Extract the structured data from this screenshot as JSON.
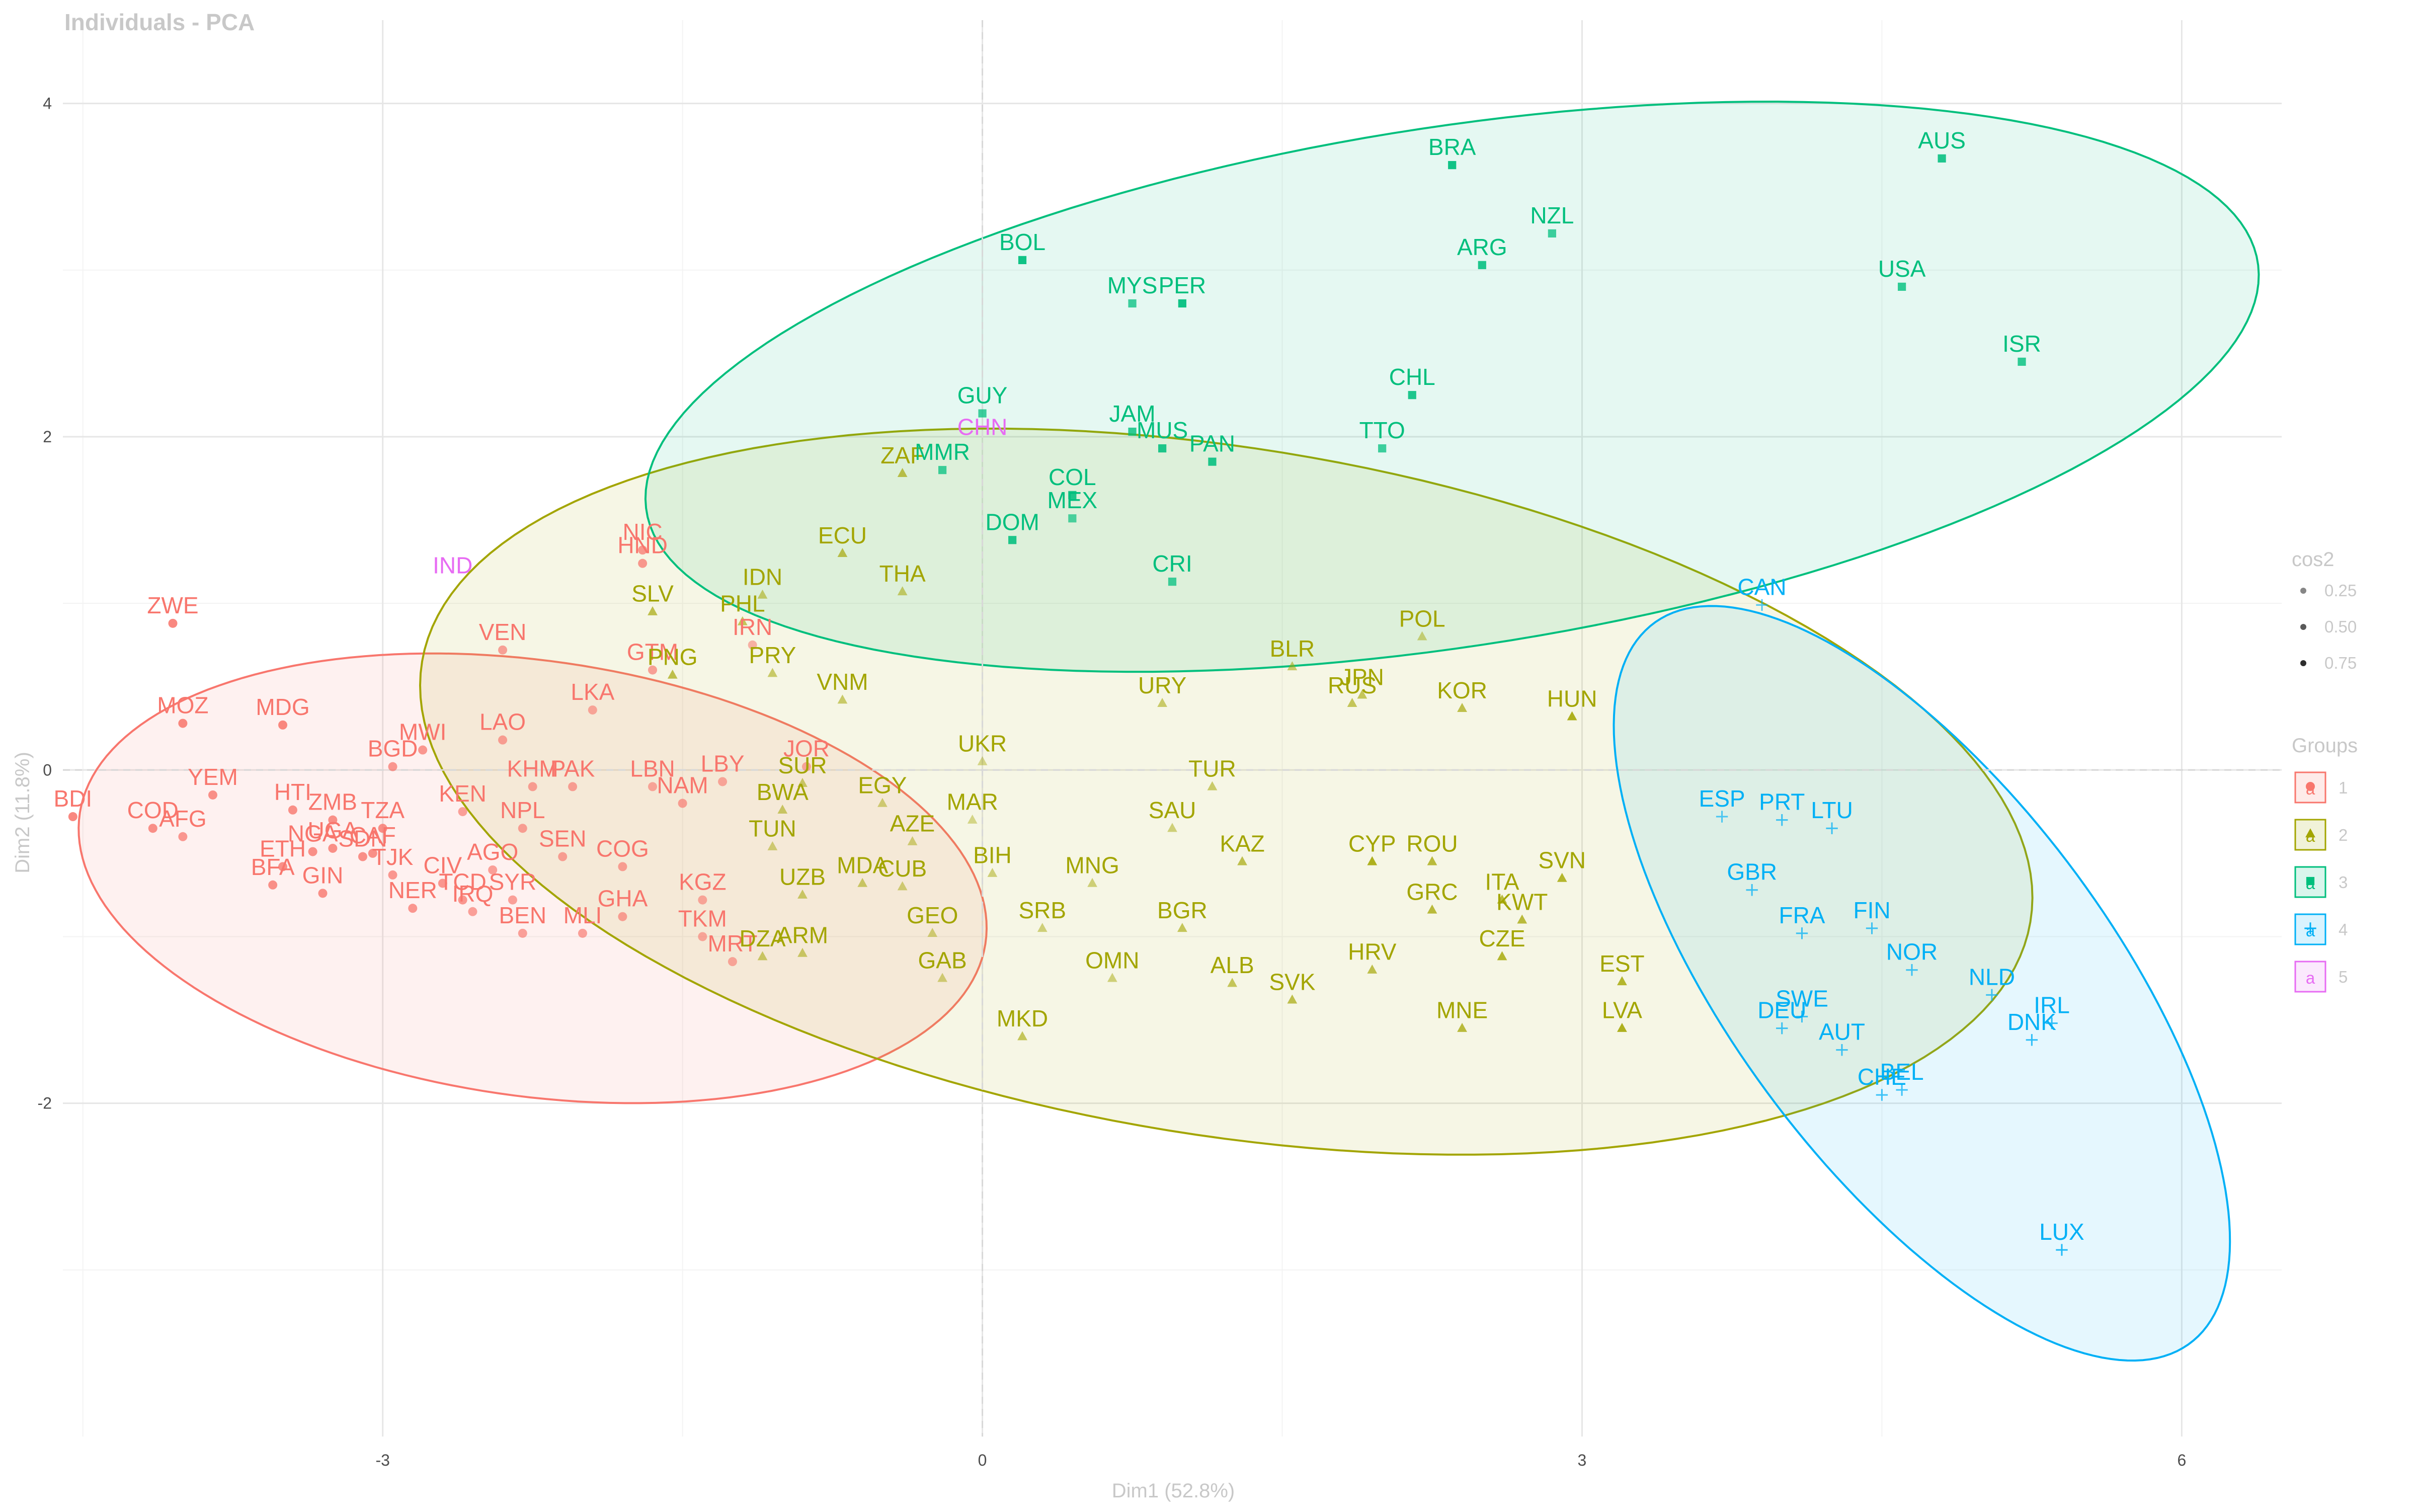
{
  "chart_data": {
    "type": "scatter",
    "title": "Individuals - PCA",
    "xlabel": "Dim1 (52.8%)",
    "ylabel": "Dim2 (11.8%)",
    "xlim": [
      -4.6,
      6.5
    ],
    "ylim": [
      -4.0,
      4.5
    ],
    "x_ticks": [
      -3,
      0,
      3,
      6
    ],
    "y_ticks": [
      -2,
      0,
      2,
      4
    ],
    "grid": true,
    "zero_lines": true,
    "legend_position": "right",
    "legend_cos2_title": "cos2",
    "legend_cos2": [
      {
        "label": "0.25",
        "value": 0.25
      },
      {
        "label": "0.50",
        "value": 0.5
      },
      {
        "label": "0.75",
        "value": 0.75
      }
    ],
    "legend_groups_title": "Groups",
    "legend_key_glyph": "a",
    "groups": [
      {
        "id": "1",
        "color": "#F8766D",
        "marker": "circle"
      },
      {
        "id": "2",
        "color": "#A3A500",
        "marker": "triangle"
      },
      {
        "id": "3",
        "color": "#00BF7D",
        "marker": "square"
      },
      {
        "id": "4",
        "color": "#00B0F6",
        "marker": "plus"
      },
      {
        "id": "5",
        "color": "#E76BF3",
        "marker": "none"
      }
    ],
    "ellipses": [
      {
        "group": "1",
        "cx": -2.25,
        "cy": -0.65,
        "rx": 2.3,
        "ry": 1.3,
        "angle": -11
      },
      {
        "group": "2",
        "cx": 1.22,
        "cy": -0.13,
        "rx": 4.1,
        "ry": 2.05,
        "angle": -12
      },
      {
        "group": "3",
        "cx": 2.35,
        "cy": 2.3,
        "rx": 4.1,
        "ry": 1.55,
        "angle": 11
      },
      {
        "group": "4",
        "cx": 4.7,
        "cy": -1.28,
        "rx": 2.55,
        "ry": 1.0,
        "angle": -60
      }
    ],
    "points": [
      {
        "label": "ZWE",
        "group": "1",
        "x": -4.05,
        "y": 0.88,
        "cos2": 0.8
      },
      {
        "label": "MOZ",
        "group": "1",
        "x": -4.0,
        "y": 0.28,
        "cos2": 0.8
      },
      {
        "label": "MDG",
        "group": "1",
        "x": -3.5,
        "y": 0.27,
        "cos2": 0.8
      },
      {
        "label": "YEM",
        "group": "1",
        "x": -3.85,
        "y": -0.15,
        "cos2": 0.7
      },
      {
        "label": "HTI",
        "group": "1",
        "x": -3.45,
        "y": -0.24,
        "cos2": 0.7
      },
      {
        "label": "COD",
        "group": "1",
        "x": -4.15,
        "y": -0.35,
        "cos2": 0.7
      },
      {
        "label": "AFG",
        "group": "1",
        "x": -4.0,
        "y": -0.4,
        "cos2": 0.6
      },
      {
        "label": "BDI",
        "group": "1",
        "x": -4.55,
        "y": -0.28,
        "cos2": 0.8
      },
      {
        "label": "NGA",
        "group": "1",
        "x": -3.35,
        "y": -0.49,
        "cos2": 0.7
      },
      {
        "label": "ETH",
        "group": "1",
        "x": -3.5,
        "y": -0.58,
        "cos2": 0.7
      },
      {
        "label": "BFA",
        "group": "1",
        "x": -3.55,
        "y": -0.69,
        "cos2": 0.7
      },
      {
        "label": "GIN",
        "group": "1",
        "x": -3.3,
        "y": -0.74,
        "cos2": 0.7
      },
      {
        "label": "UGA",
        "group": "1",
        "x": -3.25,
        "y": -0.47,
        "cos2": 0.7
      },
      {
        "label": "SDN",
        "group": "1",
        "x": -3.1,
        "y": -0.52,
        "cos2": 0.7
      },
      {
        "label": "ZMB",
        "group": "1",
        "x": -3.25,
        "y": -0.3,
        "cos2": 0.7
      },
      {
        "label": "TZA",
        "group": "1",
        "x": -3.0,
        "y": -0.35,
        "cos2": 0.7
      },
      {
        "label": "BGD",
        "group": "1",
        "x": -2.95,
        "y": 0.02,
        "cos2": 0.6
      },
      {
        "label": "CAF",
        "group": "1",
        "x": -3.05,
        "y": -0.5,
        "cos2": 0.7
      },
      {
        "label": "TJK",
        "group": "1",
        "x": -2.95,
        "y": -0.63,
        "cos2": 0.6
      },
      {
        "label": "NER",
        "group": "1",
        "x": -2.85,
        "y": -0.83,
        "cos2": 0.6
      },
      {
        "label": "CIV",
        "group": "1",
        "x": -2.7,
        "y": -0.68,
        "cos2": 0.6
      },
      {
        "label": "TCD",
        "group": "1",
        "x": -2.6,
        "y": -0.78,
        "cos2": 0.6
      },
      {
        "label": "MWI",
        "group": "1",
        "x": -2.8,
        "y": 0.12,
        "cos2": 0.6
      },
      {
        "label": "LAO",
        "group": "1",
        "x": -2.4,
        "y": 0.18,
        "cos2": 0.5
      },
      {
        "label": "KHM",
        "group": "1",
        "x": -2.25,
        "y": -0.1,
        "cos2": 0.5
      },
      {
        "label": "KEN",
        "group": "1",
        "x": -2.6,
        "y": -0.25,
        "cos2": 0.5
      },
      {
        "label": "NPL",
        "group": "1",
        "x": -2.3,
        "y": -0.35,
        "cos2": 0.5
      },
      {
        "label": "AGO",
        "group": "1",
        "x": -2.45,
        "y": -0.6,
        "cos2": 0.5
      },
      {
        "label": "SEN",
        "group": "1",
        "x": -2.1,
        "y": -0.52,
        "cos2": 0.5
      },
      {
        "label": "SYR",
        "group": "1",
        "x": -2.35,
        "y": -0.78,
        "cos2": 0.5
      },
      {
        "label": "IRQ",
        "group": "1",
        "x": -2.55,
        "y": -0.85,
        "cos2": 0.5
      },
      {
        "label": "BEN",
        "group": "1",
        "x": -2.3,
        "y": -0.98,
        "cos2": 0.5
      },
      {
        "label": "MLI",
        "group": "1",
        "x": -2.0,
        "y": -0.98,
        "cos2": 0.5
      },
      {
        "label": "GHA",
        "group": "1",
        "x": -1.8,
        "y": -0.88,
        "cos2": 0.5
      },
      {
        "label": "COG",
        "group": "1",
        "x": -1.8,
        "y": -0.58,
        "cos2": 0.5
      },
      {
        "label": "PAK",
        "group": "1",
        "x": -2.05,
        "y": -0.1,
        "cos2": 0.5
      },
      {
        "label": "NAM",
        "group": "1",
        "x": -1.5,
        "y": -0.2,
        "cos2": 0.5
      },
      {
        "label": "LBN",
        "group": "1",
        "x": -1.65,
        "y": -0.1,
        "cos2": 0.4
      },
      {
        "label": "LBY",
        "group": "1",
        "x": -1.3,
        "y": -0.07,
        "cos2": 0.4
      },
      {
        "label": "JOR",
        "group": "1",
        "x": -0.88,
        "y": 0.02,
        "cos2": 0.4
      },
      {
        "label": "KGZ",
        "group": "1",
        "x": -1.4,
        "y": -0.78,
        "cos2": 0.4
      },
      {
        "label": "TKM",
        "group": "1",
        "x": -1.4,
        "y": -1.0,
        "cos2": 0.4
      },
      {
        "label": "MRT",
        "group": "1",
        "x": -1.25,
        "y": -1.15,
        "cos2": 0.4
      },
      {
        "label": "LKA",
        "group": "1",
        "x": -1.95,
        "y": 0.36,
        "cos2": 0.4
      },
      {
        "label": "GTM",
        "group": "1",
        "x": -1.65,
        "y": 0.6,
        "cos2": 0.5
      },
      {
        "label": "IRN",
        "group": "1",
        "x": -1.15,
        "y": 0.75,
        "cos2": 0.3
      },
      {
        "label": "VEN",
        "group": "1",
        "x": -2.4,
        "y": 0.72,
        "cos2": 0.5
      },
      {
        "label": "NIC",
        "group": "1",
        "x": -1.7,
        "y": 1.32,
        "cos2": 0.6
      },
      {
        "label": "HND",
        "group": "1",
        "x": -1.7,
        "y": 1.24,
        "cos2": 0.6
      },
      {
        "label": "ZAF",
        "group": "2",
        "x": -0.4,
        "y": 1.78,
        "cos2": 0.5
      },
      {
        "label": "ECU",
        "group": "2",
        "x": -0.7,
        "y": 1.3,
        "cos2": 0.5
      },
      {
        "label": "IDN",
        "group": "2",
        "x": -1.1,
        "y": 1.05,
        "cos2": 0.3
      },
      {
        "label": "THA",
        "group": "2",
        "x": -0.4,
        "y": 1.07,
        "cos2": 0.3
      },
      {
        "label": "SLV",
        "group": "2",
        "x": -1.65,
        "y": 0.95,
        "cos2": 0.5
      },
      {
        "label": "PHL",
        "group": "2",
        "x": -1.2,
        "y": 0.89,
        "cos2": 0.4
      },
      {
        "label": "PNG",
        "group": "2",
        "x": -1.55,
        "y": 0.57,
        "cos2": 0.5
      },
      {
        "label": "PRY",
        "group": "2",
        "x": -1.05,
        "y": 0.58,
        "cos2": 0.3
      },
      {
        "label": "VNM",
        "group": "2",
        "x": -0.7,
        "y": 0.42,
        "cos2": 0.3
      },
      {
        "label": "SUR",
        "group": "2",
        "x": -0.9,
        "y": -0.08,
        "cos2": 0.3
      },
      {
        "label": "BWA",
        "group": "2",
        "x": -1.0,
        "y": -0.24,
        "cos2": 0.3
      },
      {
        "label": "EGY",
        "group": "2",
        "x": -0.5,
        "y": -0.2,
        "cos2": 0.2
      },
      {
        "label": "TUN",
        "group": "2",
        "x": -1.05,
        "y": -0.46,
        "cos2": 0.2
      },
      {
        "label": "AZE",
        "group": "2",
        "x": -0.35,
        "y": -0.43,
        "cos2": 0.2
      },
      {
        "label": "UZB",
        "group": "2",
        "x": -0.9,
        "y": -0.75,
        "cos2": 0.3
      },
      {
        "label": "CUB",
        "group": "2",
        "x": -0.4,
        "y": -0.7,
        "cos2": 0.2
      },
      {
        "label": "MDA",
        "group": "2",
        "x": -0.6,
        "y": -0.68,
        "cos2": 0.3
      },
      {
        "label": "GEO",
        "group": "2",
        "x": -0.25,
        "y": -0.98,
        "cos2": 0.2
      },
      {
        "label": "ARM",
        "group": "2",
        "x": -0.9,
        "y": -1.1,
        "cos2": 0.3
      },
      {
        "label": "DZA",
        "group": "2",
        "x": -1.1,
        "y": -1.12,
        "cos2": 0.3
      },
      {
        "label": "GAB",
        "group": "2",
        "x": -0.2,
        "y": -1.25,
        "cos2": 0.2
      },
      {
        "label": "MKD",
        "group": "2",
        "x": 0.2,
        "y": -1.6,
        "cos2": 0.4
      },
      {
        "label": "OMN",
        "group": "2",
        "x": 0.65,
        "y": -1.25,
        "cos2": 0.2
      },
      {
        "label": "SRB",
        "group": "2",
        "x": 0.3,
        "y": -0.95,
        "cos2": 0.2
      },
      {
        "label": "BIH",
        "group": "2",
        "x": 0.05,
        "y": -0.62,
        "cos2": 0.2
      },
      {
        "label": "MAR",
        "group": "2",
        "x": -0.05,
        "y": -0.3,
        "cos2": 0.1
      },
      {
        "label": "UKR",
        "group": "2",
        "x": 0.0,
        "y": 0.05,
        "cos2": 0.1
      },
      {
        "label": "SAU",
        "group": "2",
        "x": 0.95,
        "y": -0.35,
        "cos2": 0.2
      },
      {
        "label": "MNG",
        "group": "2",
        "x": 0.55,
        "y": -0.68,
        "cos2": 0.2
      },
      {
        "label": "BGR",
        "group": "2",
        "x": 1.0,
        "y": -0.95,
        "cos2": 0.4
      },
      {
        "label": "ALB",
        "group": "2",
        "x": 1.25,
        "y": -1.28,
        "cos2": 0.4
      },
      {
        "label": "SVK",
        "group": "2",
        "x": 1.55,
        "y": -1.38,
        "cos2": 0.5
      },
      {
        "label": "HRV",
        "group": "2",
        "x": 1.95,
        "y": -1.2,
        "cos2": 0.5
      },
      {
        "label": "MNE",
        "group": "2",
        "x": 2.4,
        "y": -1.55,
        "cos2": 0.6
      },
      {
        "label": "CZE",
        "group": "2",
        "x": 2.6,
        "y": -1.12,
        "cos2": 0.7
      },
      {
        "label": "KWT",
        "group": "2",
        "x": 2.7,
        "y": -0.9,
        "cos2": 0.6
      },
      {
        "label": "EST",
        "group": "2",
        "x": 3.2,
        "y": -1.27,
        "cos2": 0.7
      },
      {
        "label": "LVA",
        "group": "2",
        "x": 3.2,
        "y": -1.55,
        "cos2": 0.8
      },
      {
        "label": "GRC",
        "group": "2",
        "x": 2.25,
        "y": -0.84,
        "cos2": 0.6
      },
      {
        "label": "ITA",
        "group": "2",
        "x": 2.6,
        "y": -0.78,
        "cos2": 0.6
      },
      {
        "label": "SVN",
        "group": "2",
        "x": 2.9,
        "y": -0.65,
        "cos2": 0.7
      },
      {
        "label": "ROU",
        "group": "2",
        "x": 2.25,
        "y": -0.55,
        "cos2": 0.6
      },
      {
        "label": "CYP",
        "group": "2",
        "x": 1.95,
        "y": -0.55,
        "cos2": 0.8
      },
      {
        "label": "KAZ",
        "group": "2",
        "x": 1.3,
        "y": -0.55,
        "cos2": 0.5
      },
      {
        "label": "TUR",
        "group": "2",
        "x": 1.15,
        "y": -0.1,
        "cos2": 0.3
      },
      {
        "label": "URY",
        "group": "2",
        "x": 0.9,
        "y": 0.4,
        "cos2": 0.3
      },
      {
        "label": "BLR",
        "group": "2",
        "x": 1.55,
        "y": 0.62,
        "cos2": 0.3
      },
      {
        "label": "RUS",
        "group": "2",
        "x": 1.85,
        "y": 0.4,
        "cos2": 0.4
      },
      {
        "label": "JPN",
        "group": "2",
        "x": 1.9,
        "y": 0.45,
        "cos2": 0.4
      },
      {
        "label": "KOR",
        "group": "2",
        "x": 2.4,
        "y": 0.37,
        "cos2": 0.5
      },
      {
        "label": "HUN",
        "group": "2",
        "x": 2.95,
        "y": 0.32,
        "cos2": 0.8
      },
      {
        "label": "POL",
        "group": "2",
        "x": 2.2,
        "y": 0.8,
        "cos2": 0.2
      },
      {
        "label": "BRA",
        "group": "3",
        "x": 2.35,
        "y": 3.63,
        "cos2": 0.9
      },
      {
        "label": "AUS",
        "group": "3",
        "x": 4.8,
        "y": 3.67,
        "cos2": 0.8
      },
      {
        "label": "NZL",
        "group": "3",
        "x": 2.85,
        "y": 3.22,
        "cos2": 0.6
      },
      {
        "label": "ARG",
        "group": "3",
        "x": 2.5,
        "y": 3.03,
        "cos2": 0.8
      },
      {
        "label": "USA",
        "group": "3",
        "x": 4.6,
        "y": 2.9,
        "cos2": 0.7
      },
      {
        "label": "ISR",
        "group": "3",
        "x": 5.2,
        "y": 2.45,
        "cos2": 0.7
      },
      {
        "label": "BOL",
        "group": "3",
        "x": 0.2,
        "y": 3.06,
        "cos2": 0.9
      },
      {
        "label": "PER",
        "group": "3",
        "x": 1.0,
        "y": 2.8,
        "cos2": 0.9
      },
      {
        "label": "MYS",
        "group": "3",
        "x": 0.75,
        "y": 2.8,
        "cos2": 0.6
      },
      {
        "label": "GUY",
        "group": "3",
        "x": 0.0,
        "y": 2.14,
        "cos2": 0.6
      },
      {
        "label": "JAM",
        "group": "3",
        "x": 0.75,
        "y": 2.03,
        "cos2": 0.7
      },
      {
        "label": "MUS",
        "group": "3",
        "x": 0.9,
        "y": 1.93,
        "cos2": 0.8
      },
      {
        "label": "CHL",
        "group": "3",
        "x": 2.15,
        "y": 2.25,
        "cos2": 0.8
      },
      {
        "label": "TTO",
        "group": "3",
        "x": 2.0,
        "y": 1.93,
        "cos2": 0.6
      },
      {
        "label": "COL",
        "group": "3",
        "x": 0.45,
        "y": 1.65,
        "cos2": 0.8
      },
      {
        "label": "PAN",
        "group": "3",
        "x": 1.15,
        "y": 1.85,
        "cos2": 0.8
      },
      {
        "label": "MMR",
        "group": "3",
        "x": -0.2,
        "y": 1.8,
        "cos2": 0.6
      },
      {
        "label": "MEX",
        "group": "3",
        "x": 0.45,
        "y": 1.51,
        "cos2": 0.5
      },
      {
        "label": "DOM",
        "group": "3",
        "x": 0.15,
        "y": 1.38,
        "cos2": 0.8
      },
      {
        "label": "CRI",
        "group": "3",
        "x": 0.95,
        "y": 1.13,
        "cos2": 0.6
      },
      {
        "label": "CAN",
        "group": "4",
        "x": 3.9,
        "y": 0.99,
        "cos2": 0.5
      },
      {
        "label": "ESP",
        "group": "4",
        "x": 3.7,
        "y": -0.28,
        "cos2": 0.5
      },
      {
        "label": "PRT",
        "group": "4",
        "x": 4.0,
        "y": -0.3,
        "cos2": 0.6
      },
      {
        "label": "LTU",
        "group": "4",
        "x": 4.25,
        "y": -0.35,
        "cos2": 0.6
      },
      {
        "label": "GBR",
        "group": "4",
        "x": 3.85,
        "y": -0.72,
        "cos2": 0.6
      },
      {
        "label": "FIN",
        "group": "4",
        "x": 4.45,
        "y": -0.95,
        "cos2": 0.6
      },
      {
        "label": "FRA",
        "group": "4",
        "x": 4.1,
        "y": -0.98,
        "cos2": 0.6
      },
      {
        "label": "NOR",
        "group": "4",
        "x": 4.65,
        "y": -1.2,
        "cos2": 0.6
      },
      {
        "label": "SWE",
        "group": "4",
        "x": 4.1,
        "y": -1.48,
        "cos2": 0.6
      },
      {
        "label": "NLD",
        "group": "4",
        "x": 5.05,
        "y": -1.35,
        "cos2": 0.6
      },
      {
        "label": "DEU",
        "group": "4",
        "x": 4.0,
        "y": -1.55,
        "cos2": 0.6
      },
      {
        "label": "IRL",
        "group": "4",
        "x": 5.35,
        "y": -1.52,
        "cos2": 0.7
      },
      {
        "label": "DNK",
        "group": "4",
        "x": 5.25,
        "y": -1.62,
        "cos2": 0.7
      },
      {
        "label": "AUT",
        "group": "4",
        "x": 4.3,
        "y": -1.68,
        "cos2": 0.6
      },
      {
        "label": "BEL",
        "group": "4",
        "x": 4.6,
        "y": -1.92,
        "cos2": 0.6
      },
      {
        "label": "CHE",
        "group": "4",
        "x": 4.5,
        "y": -1.95,
        "cos2": 0.6
      },
      {
        "label": "LUX",
        "group": "4",
        "x": 5.4,
        "y": -2.88,
        "cos2": 0.8
      },
      {
        "label": "CHN",
        "group": "5",
        "x": 0.0,
        "y": 1.95,
        "cos2": 0.4
      },
      {
        "label": "IND",
        "group": "5",
        "x": -2.65,
        "y": 1.12,
        "cos2": 0.5
      }
    ]
  }
}
